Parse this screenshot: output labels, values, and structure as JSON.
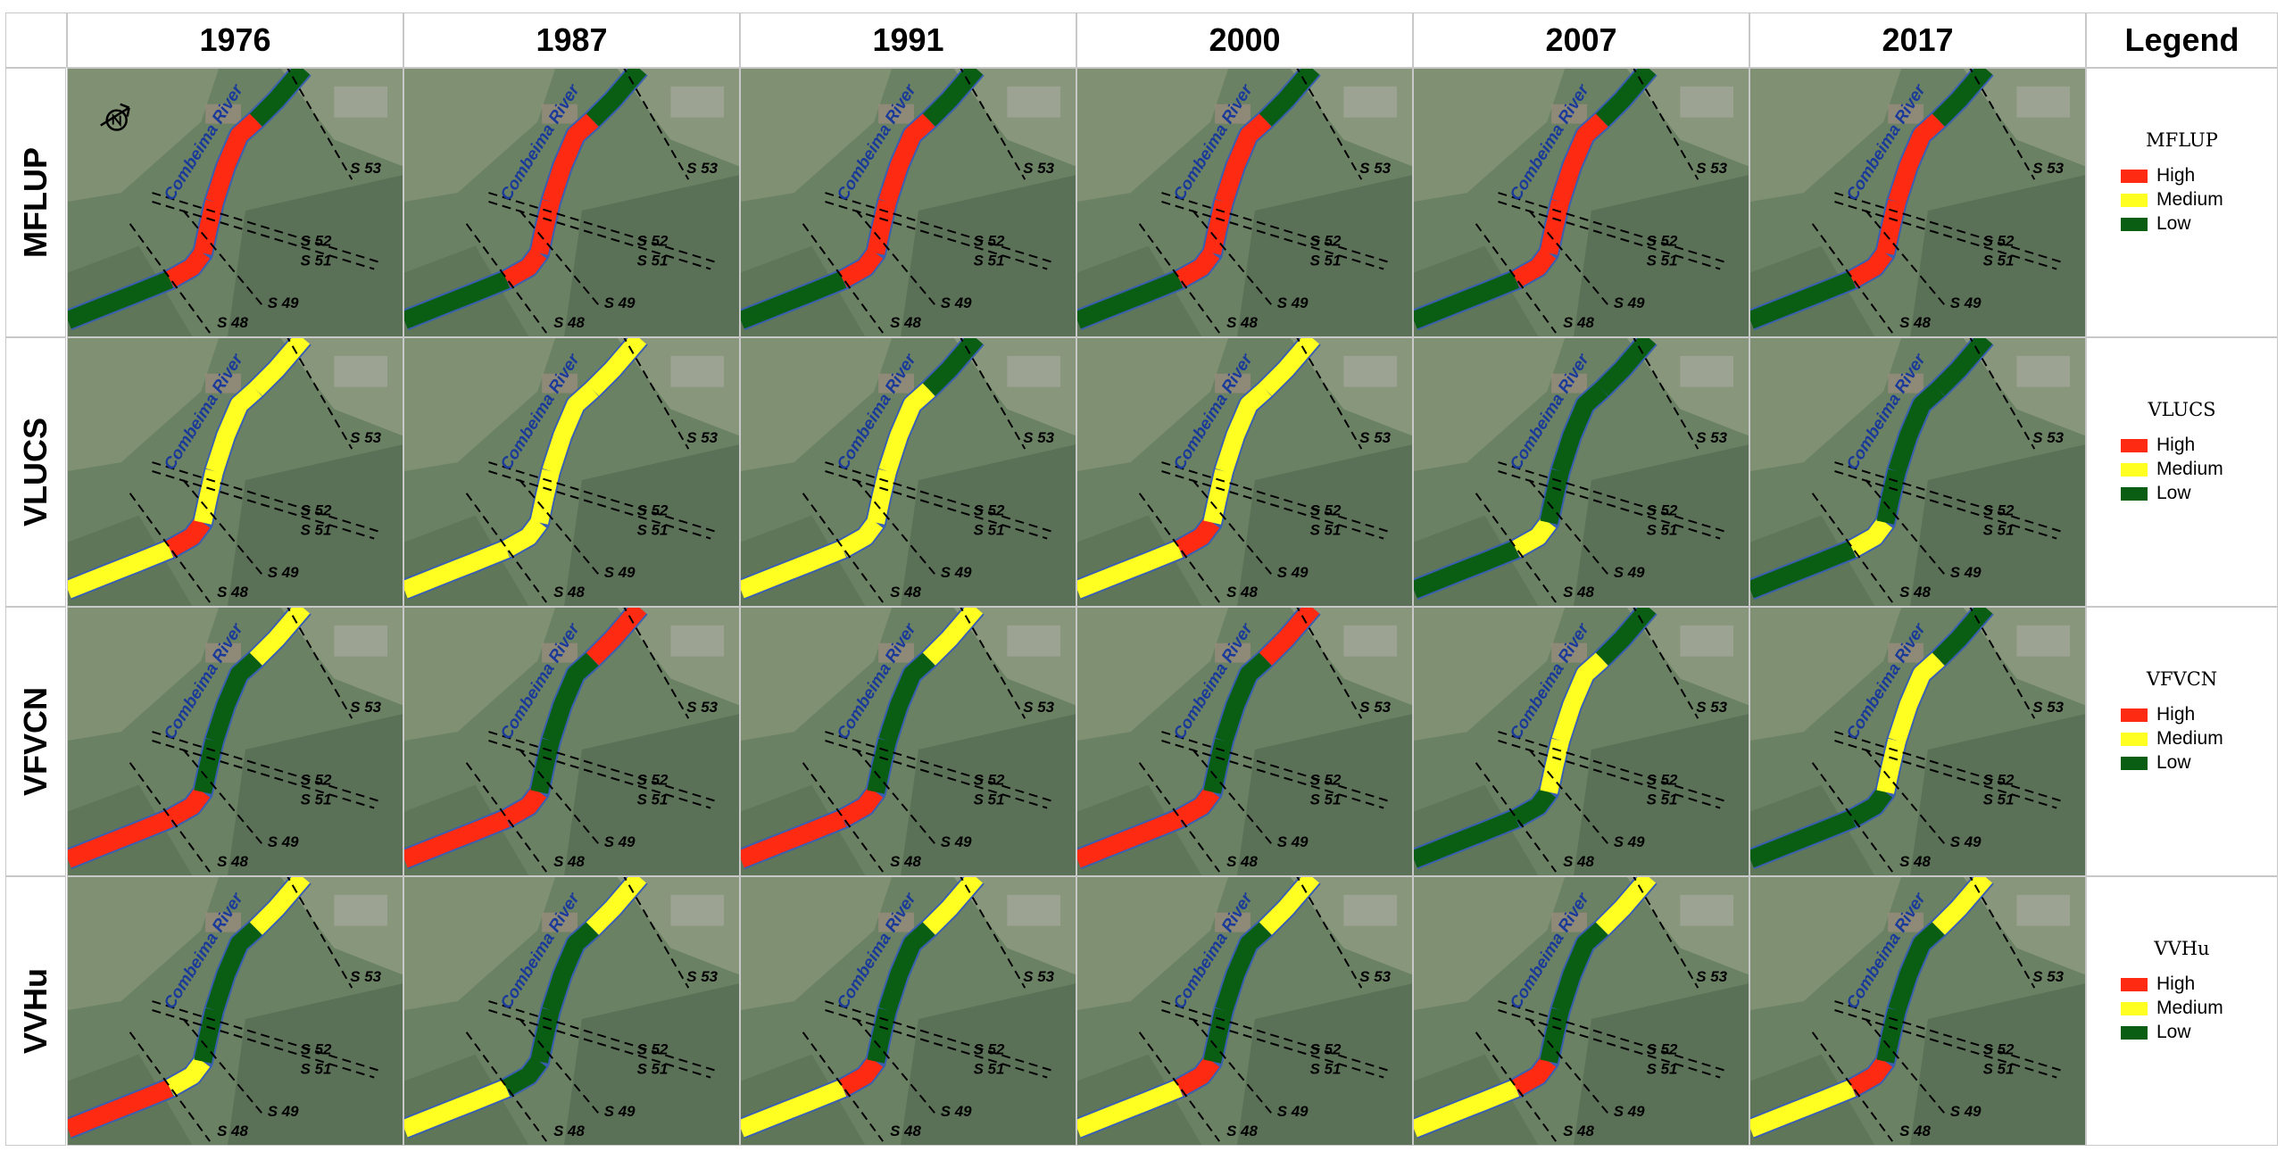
{
  "columns": [
    "1976",
    "1987",
    "1991",
    "2000",
    "2007",
    "2017"
  ],
  "legend_header": "Legend",
  "river_label": "Combeima River",
  "section_labels": [
    "S 53",
    "S 52",
    "S 51",
    "S 49",
    "S 48"
  ],
  "colors": {
    "High": "#ff2a12",
    "Medium": "#ffff22",
    "Low": "#0a5e14"
  },
  "rows": [
    {
      "label": "MFLUP",
      "legend": {
        "title": "MFLUP",
        "items": [
          "High",
          "Medium",
          "Low"
        ]
      },
      "segments": [
        [
          "Low",
          "High",
          "High",
          "High",
          "Low"
        ],
        [
          "Low",
          "High",
          "High",
          "High",
          "Low"
        ],
        [
          "Low",
          "High",
          "High",
          "High",
          "Low"
        ],
        [
          "Low",
          "High",
          "High",
          "High",
          "Low"
        ],
        [
          "Low",
          "High",
          "High",
          "High",
          "Low"
        ],
        [
          "Low",
          "High",
          "High",
          "High",
          "Low"
        ]
      ]
    },
    {
      "label": "VLUCS",
      "legend": {
        "title": "VLUCS",
        "items": [
          "High",
          "Medium",
          "Low"
        ]
      },
      "segments": [
        [
          "Medium",
          "High",
          "Medium",
          "Medium",
          "Medium"
        ],
        [
          "Medium",
          "Medium",
          "Medium",
          "Medium",
          "Medium"
        ],
        [
          "Medium",
          "Medium",
          "Medium",
          "Medium",
          "Low"
        ],
        [
          "Medium",
          "High",
          "Medium",
          "Medium",
          "Medium"
        ],
        [
          "Low",
          "Medium",
          "Low",
          "Low",
          "Low"
        ],
        [
          "Low",
          "Medium",
          "Low",
          "Low",
          "Low"
        ]
      ]
    },
    {
      "label": "VFVCN",
      "legend": {
        "title": "VFVCN",
        "items": [
          "High",
          "Medium",
          "Low"
        ]
      },
      "segments": [
        [
          "High",
          "High",
          "Low",
          "Low",
          "Medium"
        ],
        [
          "High",
          "High",
          "Low",
          "Low",
          "High"
        ],
        [
          "High",
          "High",
          "Low",
          "Low",
          "Medium"
        ],
        [
          "High",
          "High",
          "Low",
          "Low",
          "High"
        ],
        [
          "Low",
          "Low",
          "Medium",
          "Medium",
          "Low"
        ],
        [
          "Low",
          "Low",
          "Medium",
          "Medium",
          "Low"
        ]
      ]
    },
    {
      "label": "VVHu",
      "legend": {
        "title": "VVHu",
        "items": [
          "High",
          "Medium",
          "Low"
        ]
      },
      "segments": [
        [
          "High",
          "Medium",
          "Low",
          "Low",
          "Medium"
        ],
        [
          "Medium",
          "Low",
          "Low",
          "Low",
          "Medium"
        ],
        [
          "Medium",
          "High",
          "Low",
          "Low",
          "Medium"
        ],
        [
          "Medium",
          "High",
          "Low",
          "Low",
          "Medium"
        ],
        [
          "Medium",
          "High",
          "Low",
          "Low",
          "Medium"
        ],
        [
          "Medium",
          "High",
          "Low",
          "Low",
          "Medium"
        ]
      ]
    }
  ]
}
